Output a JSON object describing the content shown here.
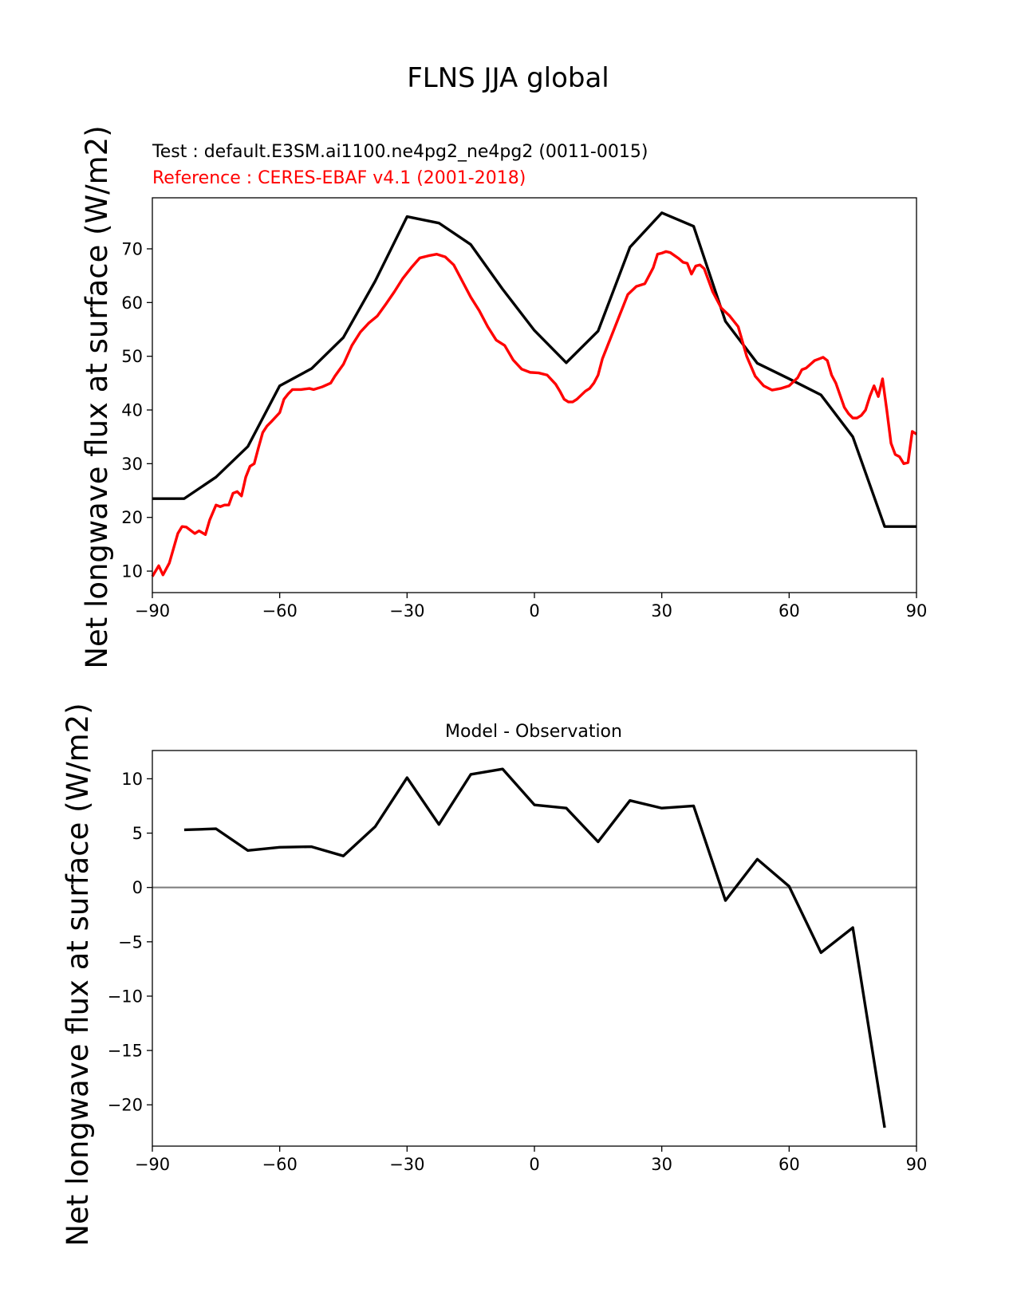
{
  "figure": {
    "title": "FLNS JJA global"
  },
  "chart_data": [
    {
      "type": "line",
      "test_label": "Test : default.E3SM.ai1100.ne4pg2_ne4pg2 (0011-0015)",
      "reference_label": "Reference : CERES-EBAF v4.1 (2001-2018)",
      "ylabel": "Net longwave flux at surface (W/m2)",
      "xlim": [
        -90,
        90
      ],
      "ylim": [
        6,
        79.5
      ],
      "xticks": [
        -90,
        -60,
        -30,
        0,
        30,
        60,
        90
      ],
      "yticks": [
        10,
        20,
        30,
        40,
        50,
        60,
        70
      ],
      "colors": {
        "test": "#000000",
        "reference": "#ff0000"
      },
      "series": [
        {
          "role": "test",
          "x": [
            -90,
            -82.5,
            -75,
            -67.5,
            -60,
            -52.5,
            -45,
            -37.5,
            -30,
            -22.5,
            -15,
            -7.5,
            0,
            7.5,
            15,
            22.5,
            30,
            37.5,
            45,
            52.5,
            60,
            67.5,
            75,
            82.5,
            90
          ],
          "y": [
            23.5,
            23.5,
            27.5,
            33.2,
            44.5,
            47.7,
            53.5,
            64.0,
            76.0,
            74.8,
            70.8,
            62.5,
            54.8,
            48.8,
            54.7,
            70.3,
            76.7,
            74.2,
            56.5,
            48.7,
            45.8,
            42.8,
            35.0,
            18.3,
            18.3
          ]
        },
        {
          "role": "reference",
          "x": [
            -90,
            -88.5,
            -87.5,
            -86,
            -84,
            -83,
            -82,
            -80,
            -79,
            -77.5,
            -76.5,
            -75,
            -74,
            -73,
            -72,
            -71,
            -70,
            -69,
            -68,
            -67,
            -66,
            -65,
            -64,
            -63,
            -62,
            -60,
            -59,
            -58,
            -57,
            -55,
            -53,
            -52,
            -50,
            -48,
            -47,
            -45,
            -43,
            -41,
            -39,
            -37,
            -35,
            -33,
            -31,
            -29,
            -27,
            -25,
            -23,
            -21,
            -19,
            -17,
            -15,
            -13,
            -11,
            -9,
            -7,
            -5,
            -3,
            -1,
            1,
            3,
            5,
            6,
            7,
            8,
            9,
            10,
            12,
            13,
            14,
            15,
            16,
            18,
            20,
            21,
            22,
            24,
            26,
            27,
            28,
            29,
            30,
            31,
            32,
            34,
            35,
            36,
            37,
            38,
            39,
            40,
            42,
            44,
            46,
            48,
            50,
            52,
            54,
            56,
            58,
            60,
            62,
            63,
            64,
            65,
            66,
            67,
            68,
            69,
            70,
            71,
            73,
            74,
            75,
            76,
            77,
            78,
            79,
            80,
            81,
            82,
            83,
            84,
            85,
            86,
            87,
            88,
            89,
            90
          ],
          "y": [
            9.0,
            11.0,
            9.3,
            11.5,
            17.0,
            18.3,
            18.2,
            17.0,
            17.5,
            16.8,
            19.5,
            22.3,
            22.0,
            22.3,
            22.3,
            24.5,
            24.8,
            24.0,
            27.5,
            29.5,
            30.0,
            33.0,
            35.8,
            37.0,
            37.8,
            39.5,
            42.0,
            43.0,
            43.8,
            43.8,
            44.0,
            43.8,
            44.3,
            45.0,
            46.3,
            48.5,
            52.0,
            54.5,
            56.2,
            57.5,
            59.7,
            62.0,
            64.5,
            66.5,
            68.3,
            68.7,
            69.0,
            68.5,
            67.0,
            64.0,
            61.0,
            58.5,
            55.5,
            53.0,
            52.0,
            49.3,
            47.6,
            47.0,
            46.9,
            46.5,
            44.8,
            43.5,
            42.0,
            41.5,
            41.5,
            42.0,
            43.5,
            44.0,
            45.0,
            46.5,
            49.5,
            53.5,
            57.5,
            59.5,
            61.5,
            63.0,
            63.5,
            65.0,
            66.5,
            69.0,
            69.2,
            69.5,
            69.3,
            68.2,
            67.5,
            67.3,
            65.3,
            66.8,
            67.0,
            66.3,
            62.0,
            59.0,
            57.5,
            55.5,
            50.0,
            46.3,
            44.5,
            43.7,
            44.0,
            44.5,
            46.0,
            47.5,
            47.8,
            48.5,
            49.2,
            49.5,
            49.8,
            49.2,
            46.5,
            45.0,
            40.5,
            39.3,
            38.5,
            38.5,
            39.0,
            40.0,
            42.5,
            44.5,
            42.5,
            45.8,
            40.0,
            33.8,
            31.7,
            31.3,
            30.0,
            30.2,
            36.0,
            35.5
          ]
        }
      ]
    },
    {
      "type": "line",
      "title": "Model - Observation",
      "ylabel": "Net longwave flux at surface (W/m2)",
      "xlim": [
        -90,
        90
      ],
      "ylim": [
        -23.8,
        12.6
      ],
      "xticks": [
        -90,
        -60,
        -30,
        0,
        30,
        60,
        90
      ],
      "yticks": [
        -20,
        -15,
        -10,
        -5,
        0,
        5,
        10
      ],
      "colors": {
        "diff": "#000000",
        "zero_line": "#808080"
      },
      "zero_line": 0,
      "series": [
        {
          "role": "diff",
          "x": [
            -82.5,
            -75,
            -67.5,
            -60,
            -52.5,
            -45,
            -37.5,
            -30,
            -22.5,
            -15,
            -7.5,
            0,
            7.5,
            15,
            22.5,
            30,
            37.5,
            45,
            52.5,
            60,
            67.5,
            75,
            82.5
          ],
          "y": [
            5.3,
            5.4,
            3.4,
            3.7,
            3.75,
            2.9,
            5.6,
            10.1,
            5.8,
            10.4,
            10.9,
            7.6,
            7.3,
            4.2,
            8.0,
            7.3,
            7.5,
            -1.2,
            2.6,
            0.1,
            -6.0,
            -3.7,
            -22.1
          ]
        }
      ]
    }
  ]
}
